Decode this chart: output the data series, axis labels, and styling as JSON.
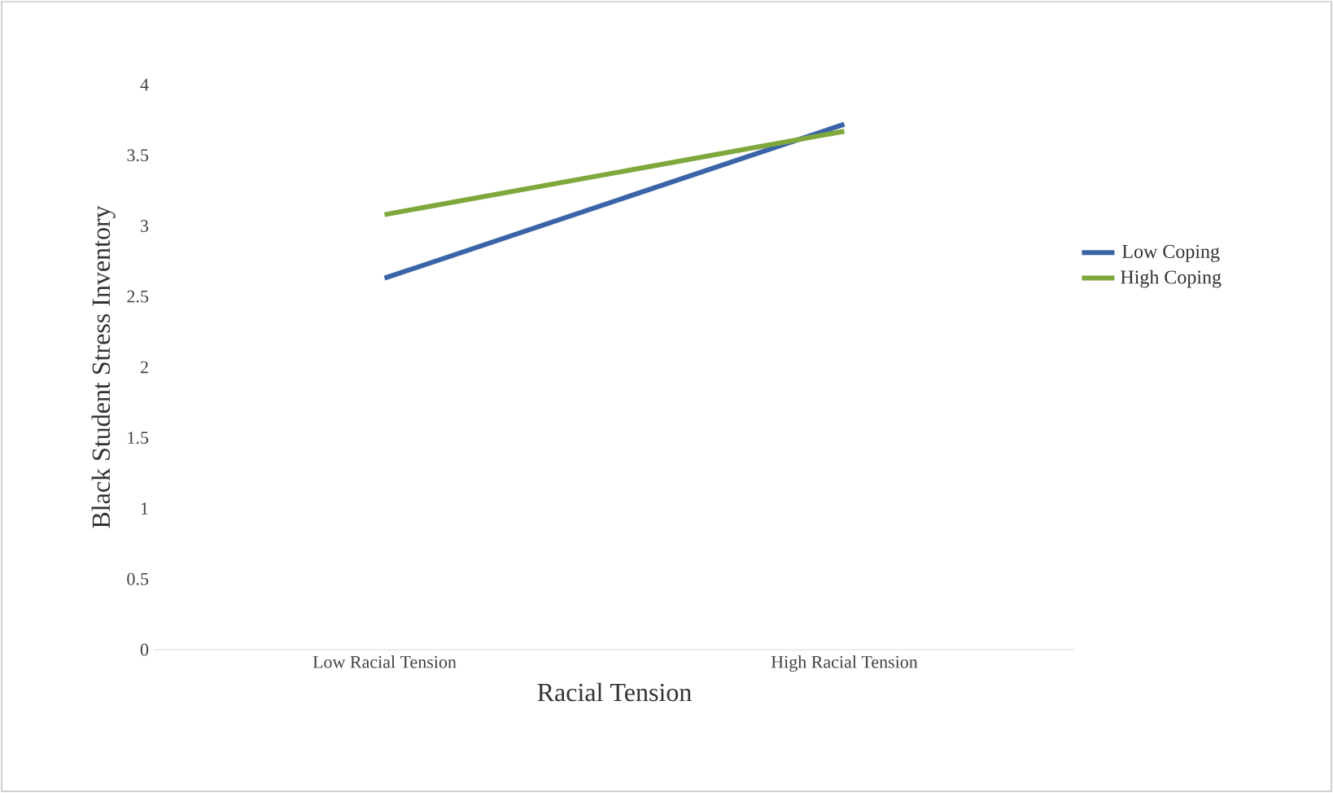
{
  "chart_data": {
    "type": "line",
    "xlabel": "Racial Tension",
    "ylabel": "Black Student  Stress Inventory",
    "categories": [
      "Low Racial Tension",
      "High Racial Tension"
    ],
    "series": [
      {
        "name": "Low Coping",
        "color": "#3a64a8",
        "values": [
          2.63,
          3.72
        ]
      },
      {
        "name": "High Coping",
        "color": "#7fa83c",
        "values": [
          3.08,
          3.67
        ]
      }
    ],
    "ylim": [
      0,
      4
    ],
    "yticks": [
      0,
      0.5,
      1,
      1.5,
      2,
      2.5,
      3,
      3.5,
      4
    ],
    "grid": false,
    "legend": "right"
  }
}
